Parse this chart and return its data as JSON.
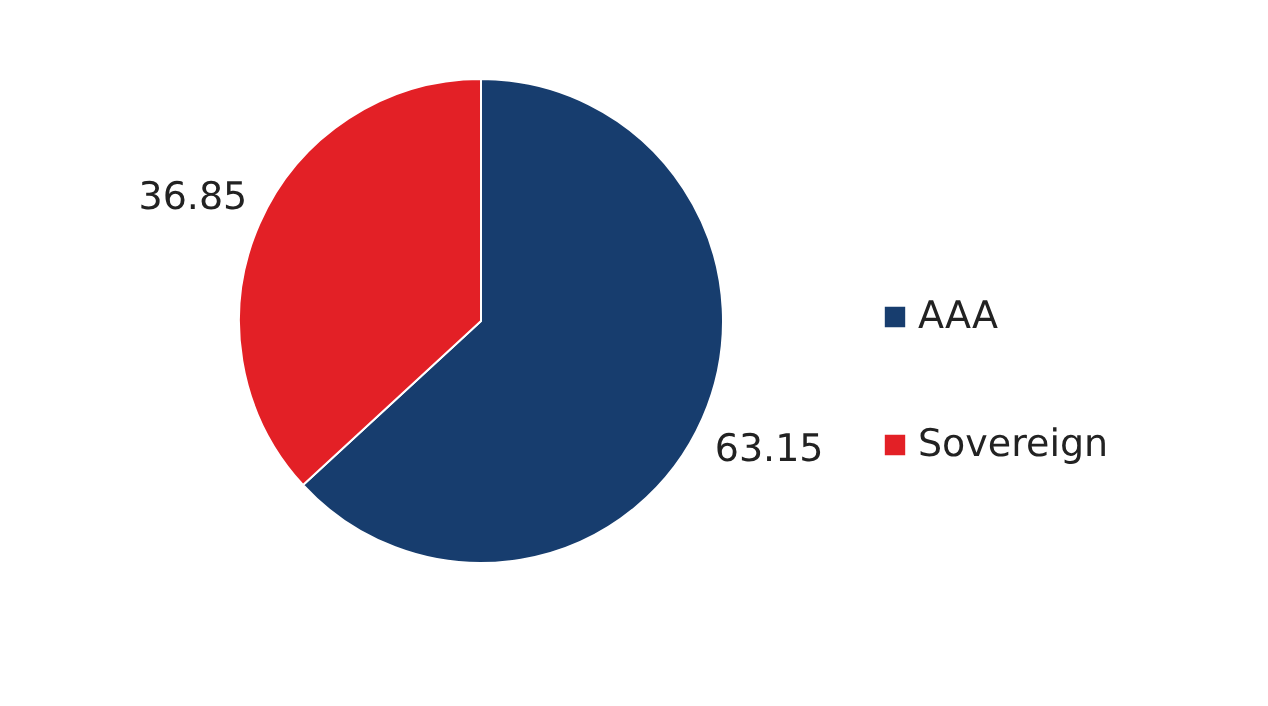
{
  "chart_data": {
    "type": "pie",
    "categories": [
      "AAA",
      "Sovereign"
    ],
    "values": [
      63.15,
      36.85
    ],
    "colors": [
      "#173d6e",
      "#e32026"
    ],
    "data_labels": true,
    "legend": "right"
  }
}
